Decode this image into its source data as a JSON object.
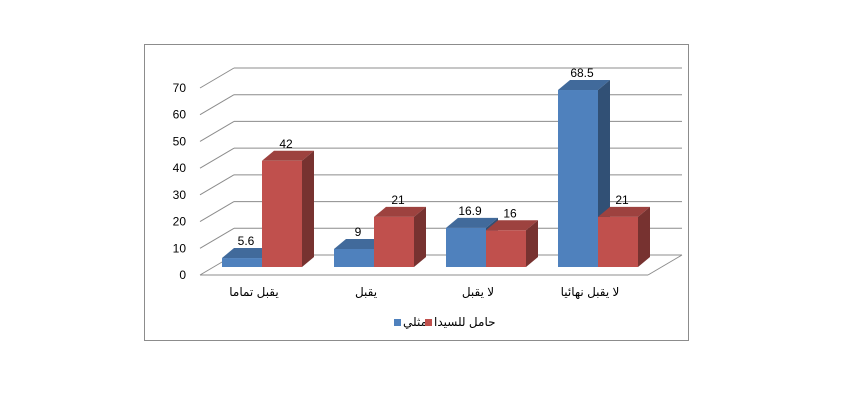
{
  "chart_data": {
    "type": "bar",
    "categories": [
      "يقبل تماما",
      "يقبل",
      "لا يقبل",
      "لا يقبل نهائيا"
    ],
    "series": [
      {
        "name": "مثلي",
        "color": "#4f81bd",
        "values": [
          5.6,
          9,
          16.9,
          68.5
        ]
      },
      {
        "name": "حامل للسيدا",
        "color": "#c0504d",
        "values": [
          42,
          21,
          16,
          21
        ]
      }
    ],
    "y_ticks": [
      "0",
      "10",
      "20",
      "30",
      "40",
      "50",
      "60",
      "70"
    ],
    "ylim": [
      0,
      70
    ],
    "grid": true,
    "legend": "bottom"
  }
}
